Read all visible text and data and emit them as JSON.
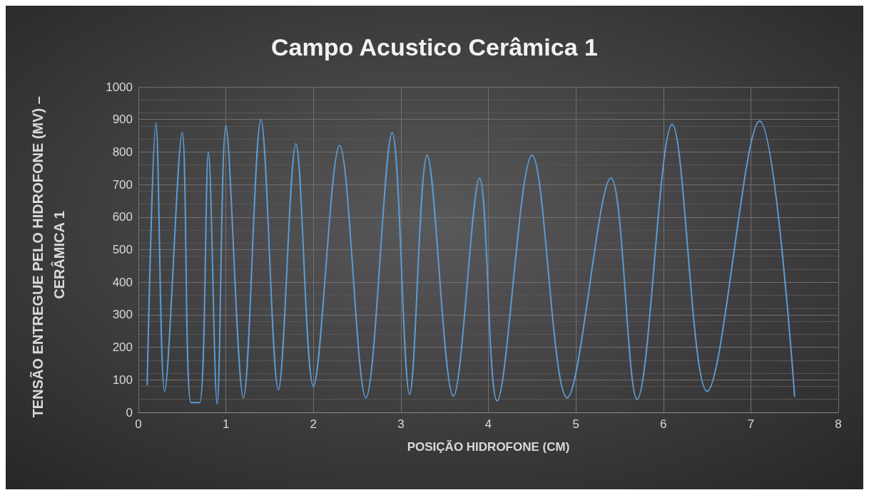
{
  "chart_data": {
    "type": "line",
    "title": "Campo Acustico Cerâmica 1",
    "xlabel": "POSIÇÃO HIDROFONE (CM)",
    "ylabel": "TENSÃO ENTREGUE PELO HIDROFONE (MV) – CERÂMICA 1",
    "x": [
      0.1,
      0.2,
      0.3,
      0.5,
      0.6,
      0.7,
      0.8,
      0.9,
      1.0,
      1.2,
      1.4,
      1.6,
      1.8,
      2.0,
      2.3,
      2.6,
      2.9,
      3.1,
      3.3,
      3.6,
      3.9,
      4.1,
      4.5,
      4.9,
      5.4,
      5.7,
      6.1,
      6.5,
      7.1,
      7.5
    ],
    "series": [
      {
        "color": "#5b9bd5",
        "values": [
          85,
          890,
          65,
          860,
          30,
          30,
          800,
          25,
          880,
          45,
          900,
          70,
          825,
          80,
          820,
          45,
          860,
          55,
          790,
          50,
          720,
          35,
          790,
          45,
          720,
          40,
          885,
          65,
          895,
          50
        ]
      }
    ],
    "xlim": [
      0,
      8
    ],
    "xticks": [
      0,
      1,
      2,
      3,
      4,
      5,
      6,
      7,
      8
    ],
    "ylim": [
      0,
      1000
    ],
    "yticks": [
      0,
      100,
      200,
      300,
      400,
      500,
      600,
      700,
      800,
      900,
      1000
    ],
    "grid": true,
    "marker": "none",
    "line_style": "solid"
  }
}
